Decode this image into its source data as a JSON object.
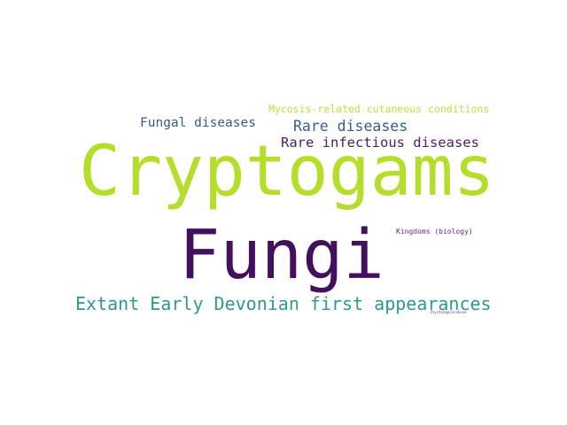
{
  "words": [
    {
      "text": "Cryptogams",
      "color": "#b5de2b"
    },
    {
      "text": "Fungi",
      "color": "#440f5e"
    },
    {
      "text": "Extant Early Devonian first appearances",
      "color": "#2a9a8f"
    },
    {
      "text": "Rare infectious diseases",
      "color": "#4b1d64"
    },
    {
      "text": "Rare diseases",
      "color": "#3a5c8c"
    },
    {
      "text": "Fungal diseases",
      "color": "#3b5a8a"
    },
    {
      "text": "Mycosis-related cutaneous conditions",
      "color": "#c6dc3f"
    },
    {
      "text": "Kingdoms (biology)",
      "color": "#5b2a74"
    },
    {
      "text": "Psychological abuse",
      "color": "#7a3b9c"
    }
  ]
}
